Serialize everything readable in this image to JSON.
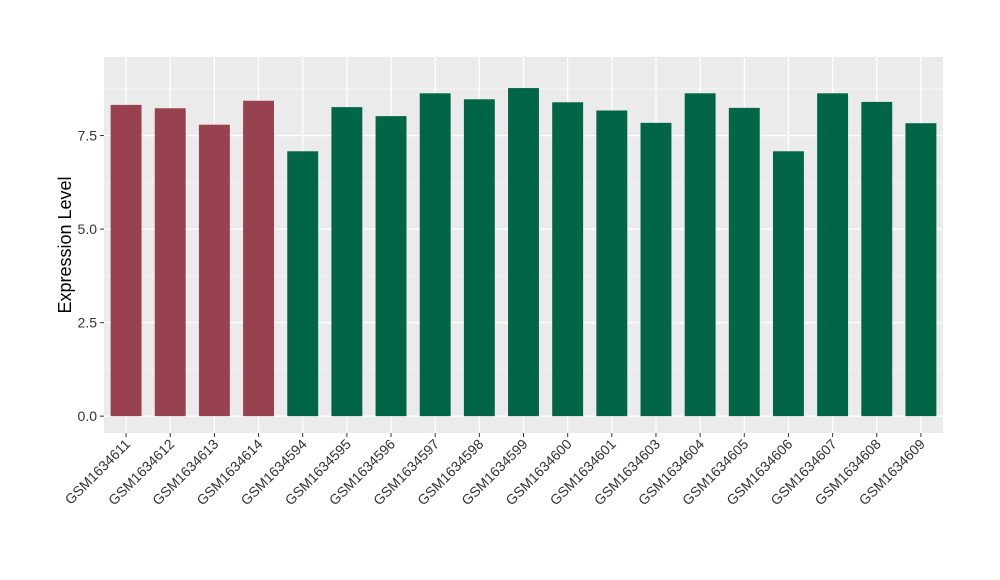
{
  "chart_data": {
    "type": "bar",
    "title": "",
    "xlabel": "",
    "ylabel": "Expression Level",
    "ylim": [
      -0.45,
      9.6
    ],
    "yticks": [
      0.0,
      2.5,
      5.0,
      7.5
    ],
    "ytick_labels": [
      "0.0",
      "2.5",
      "5.0",
      "7.5"
    ],
    "grid": true,
    "legend": "none",
    "categories": [
      "GSM1634611",
      "GSM1634612",
      "GSM1634613",
      "GSM1634614",
      "GSM1634594",
      "GSM1634595",
      "GSM1634596",
      "GSM1634597",
      "GSM1634598",
      "GSM1634599",
      "GSM1634600",
      "GSM1634601",
      "GSM1634603",
      "GSM1634604",
      "GSM1634605",
      "GSM1634606",
      "GSM1634607",
      "GSM1634608",
      "GSM1634609"
    ],
    "values": [
      8.32,
      8.23,
      7.79,
      8.43,
      7.08,
      8.26,
      8.02,
      8.63,
      8.47,
      8.77,
      8.39,
      8.17,
      7.84,
      8.63,
      8.24,
      7.08,
      8.63,
      8.4,
      7.83
    ],
    "bar_colors": [
      "#99424f",
      "#99424f",
      "#99424f",
      "#99424f",
      "#006647",
      "#006647",
      "#006647",
      "#006647",
      "#006647",
      "#006647",
      "#006647",
      "#006647",
      "#006647",
      "#006647",
      "#006647",
      "#006647",
      "#006647",
      "#006647",
      "#006647"
    ]
  },
  "colors": {
    "panel_background": "#ebebeb",
    "grid_major": "#ffffff",
    "grid_minor": "#f5f5f5",
    "tick_mark": "#333333"
  }
}
